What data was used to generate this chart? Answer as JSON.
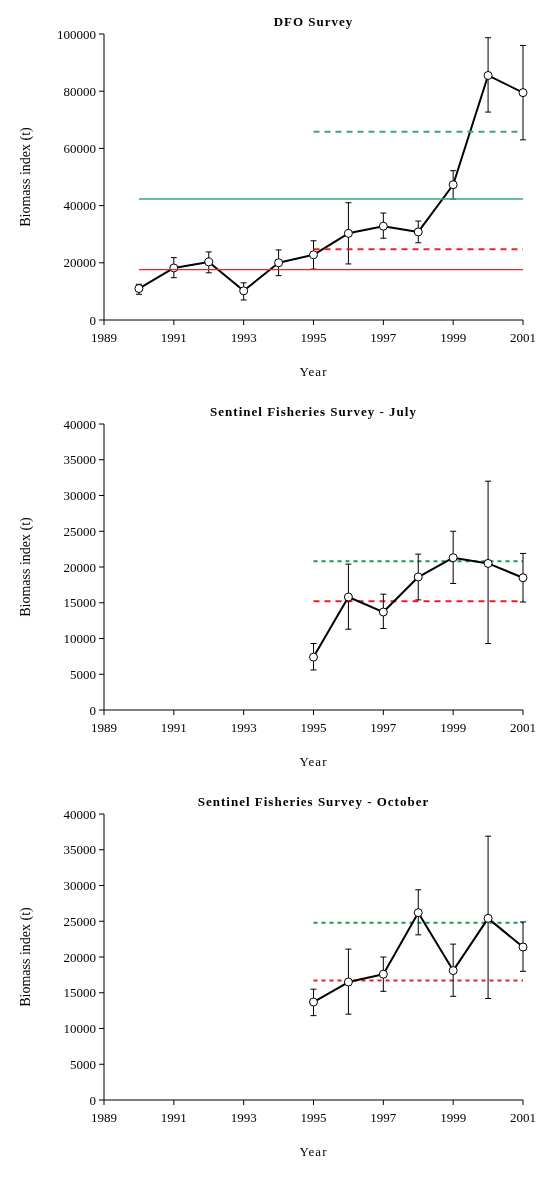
{
  "chart_data": [
    {
      "type": "line",
      "title": "DFO Survey",
      "xlabel": "Year",
      "ylabel": "Biomass index (t)",
      "xlim": [
        1989,
        2001
      ],
      "xticks": [
        1989,
        1991,
        1993,
        1995,
        1997,
        1999,
        2001
      ],
      "ylim": [
        0,
        100000
      ],
      "yticks": [
        0,
        20000,
        40000,
        60000,
        80000,
        100000
      ],
      "grid": false,
      "series": [
        {
          "color": "#000000",
          "marker": "circle",
          "line_style": "solid",
          "x": [
            1990,
            1991,
            1992,
            1993,
            1994,
            1995,
            1996,
            1997,
            1998,
            1999,
            2000,
            2001
          ],
          "values": [
            11000,
            18200,
            20300,
            10200,
            20000,
            22800,
            30300,
            32800,
            30800,
            47300,
            85500,
            79500
          ],
          "errors": [
            [
              9000,
              12500
            ],
            [
              14800,
              21800
            ],
            [
              16500,
              23800
            ],
            [
              7000,
              13000
            ],
            [
              15500,
              24500
            ],
            [
              17800,
              27700
            ],
            [
              19600,
              41000
            ],
            [
              28600,
              37400
            ],
            [
              27000,
              34600
            ],
            [
              42300,
              52200
            ],
            [
              72700,
              98700
            ],
            [
              63000,
              96000
            ]
          ]
        },
        {
          "color": "#3aa679",
          "marker": "none",
          "line_style": "solid",
          "x": [
            1990,
            2001
          ],
          "values": [
            42300,
            42300
          ]
        },
        {
          "color": "#3aa679",
          "marker": "none",
          "line_style": "dashed",
          "x": [
            1995,
            2001
          ],
          "values": [
            65800,
            65800
          ]
        },
        {
          "color": "#e8262a",
          "marker": "none",
          "line_style": "dashed",
          "x": [
            1995,
            2001
          ],
          "values": [
            24700,
            24700
          ]
        },
        {
          "color": "#e8262a",
          "marker": "none",
          "line_style": "solid",
          "x": [
            1990,
            2001
          ],
          "values": [
            17600,
            17600
          ]
        }
      ]
    },
    {
      "type": "line",
      "title": "Sentinel Fisheries Survey - July",
      "xlabel": "Year",
      "ylabel": "Biomass index (t)",
      "xlim": [
        1989,
        2001
      ],
      "xticks": [
        1989,
        1991,
        1993,
        1995,
        1997,
        1999,
        2001
      ],
      "ylim": [
        0,
        40000
      ],
      "yticks": [
        0,
        5000,
        10000,
        15000,
        20000,
        25000,
        30000,
        35000,
        40000
      ],
      "grid": false,
      "series": [
        {
          "color": "#1a9850",
          "marker": "none",
          "line_style": "dotted",
          "x": [
            1995,
            2001
          ],
          "values": [
            20800,
            20800
          ]
        },
        {
          "color": "#ee1c1c",
          "marker": "none",
          "line_style": "dashed",
          "x": [
            1995,
            2001
          ],
          "values": [
            15200,
            15200
          ]
        },
        {
          "color": "#000000",
          "marker": "circle",
          "line_style": "solid",
          "x": [
            1995,
            1996,
            1997,
            1998,
            1999,
            2000,
            2001
          ],
          "values": [
            7400,
            15800,
            13700,
            18600,
            21300,
            20500,
            18500
          ],
          "errors": [
            [
              5600,
              9300
            ],
            [
              11300,
              20400
            ],
            [
              11400,
              16200
            ],
            [
              15400,
              21800
            ],
            [
              17700,
              25000
            ],
            [
              9300,
              32000
            ],
            [
              15100,
              21900
            ]
          ]
        }
      ]
    },
    {
      "type": "line",
      "title": "Sentinel Fisheries Survey - October",
      "xlabel": "Year",
      "ylabel": "Biomass index (t)",
      "xlim": [
        1989,
        2001
      ],
      "xticks": [
        1989,
        1991,
        1993,
        1995,
        1997,
        1999,
        2001
      ],
      "ylim": [
        0,
        40000
      ],
      "yticks": [
        0,
        5000,
        10000,
        15000,
        20000,
        25000,
        30000,
        35000,
        40000
      ],
      "grid": false,
      "series": [
        {
          "color": "#1a9850",
          "marker": "none",
          "line_style": "dotted",
          "x": [
            1995,
            2001
          ],
          "values": [
            24800,
            24800
          ]
        },
        {
          "color": "#ee1c1c",
          "marker": "none",
          "line_style": "dotted",
          "x": [
            1995,
            2001
          ],
          "values": [
            16700,
            16700
          ]
        },
        {
          "color": "#000000",
          "marker": "circle",
          "line_style": "solid",
          "x": [
            1995,
            1996,
            1997,
            1998,
            1999,
            2000,
            2001
          ],
          "values": [
            13700,
            16500,
            17600,
            26200,
            18100,
            25400,
            21400
          ],
          "errors": [
            [
              11800,
              15500
            ],
            [
              12000,
              21100
            ],
            [
              15200,
              20000
            ],
            [
              23100,
              29400
            ],
            [
              14500,
              21800
            ],
            [
              14200,
              36900
            ],
            [
              18000,
              24900
            ]
          ]
        }
      ]
    }
  ]
}
